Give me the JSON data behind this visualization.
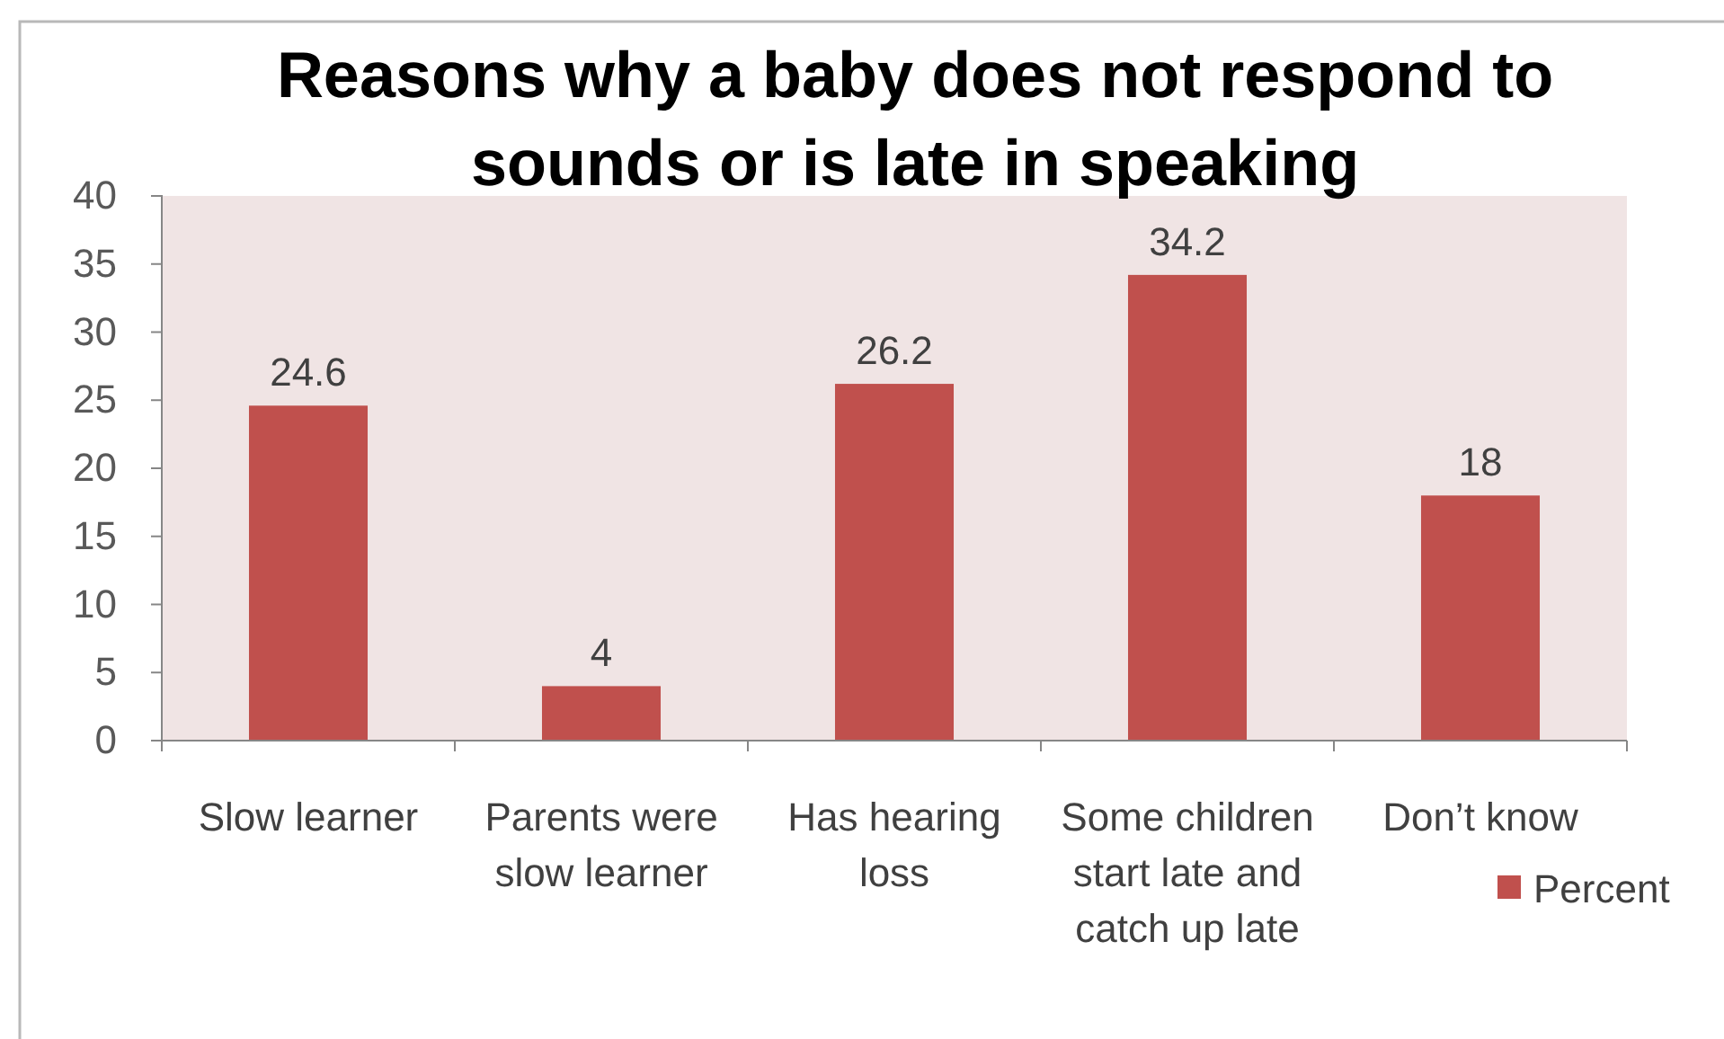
{
  "chart_data": {
    "type": "bar",
    "title": "Reasons why a baby does not respond to sounds or is late in speaking",
    "categories": [
      "Slow learner",
      "Parents were slow learner",
      "Has hearing loss",
      "Some children start late and catch up late",
      "Don’t know"
    ],
    "series": [
      {
        "name": "Percent",
        "color": "#c0504d",
        "values": [
          24.6,
          4,
          26.2,
          34.2,
          18
        ]
      }
    ],
    "ylim": [
      0,
      40
    ],
    "yticks": [
      0,
      5,
      10,
      15,
      20,
      25,
      30,
      35,
      40
    ],
    "data_labels": true,
    "legend": "right"
  }
}
